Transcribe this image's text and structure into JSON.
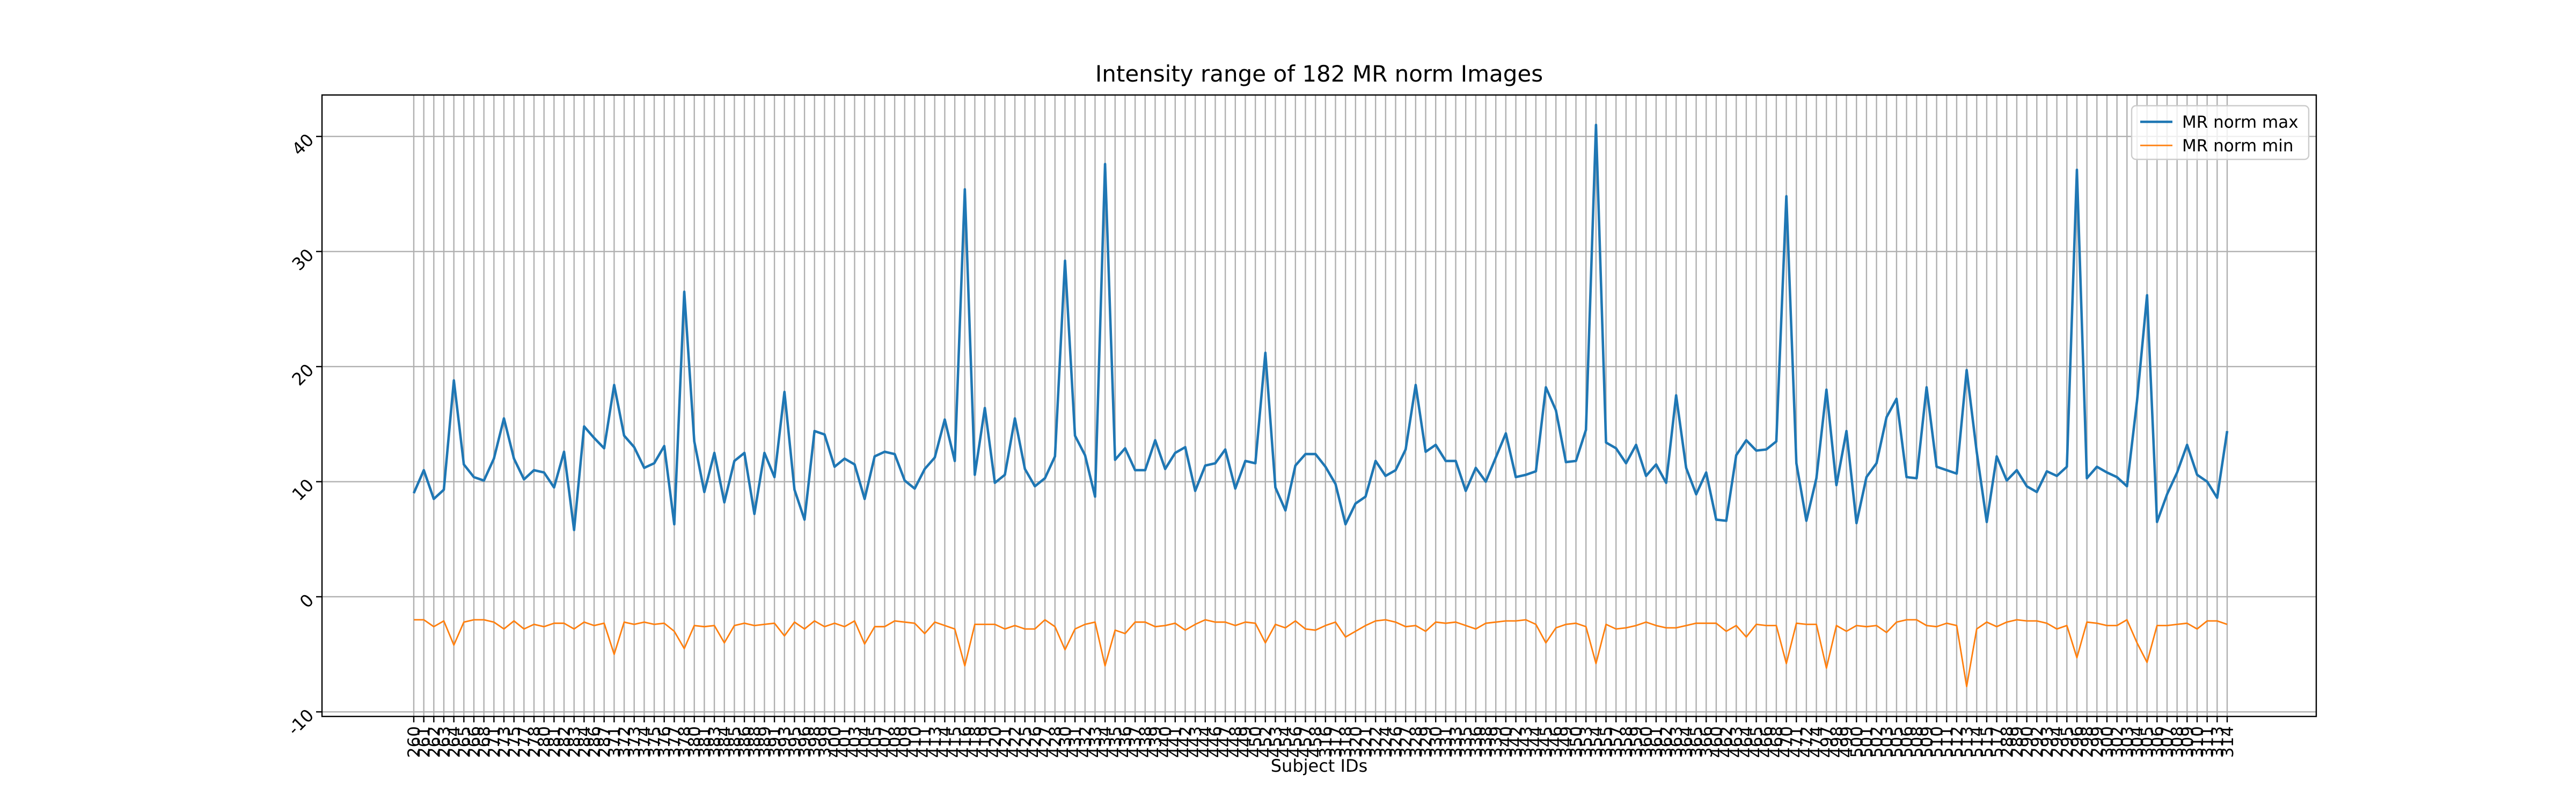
{
  "chart_data": {
    "type": "line",
    "title": "Intensity range of 182 MR norm Images",
    "x_label": "Subject IDs",
    "legend": "upper right",
    "grid": true,
    "ylim": [
      -10.4,
      43.6
    ],
    "yticks": [
      -10,
      0,
      10,
      20,
      30,
      40
    ],
    "categories": [
      "260",
      "261",
      "262",
      "263",
      "264",
      "265",
      "266",
      "268",
      "271",
      "273",
      "275",
      "277",
      "278",
      "280",
      "281",
      "282",
      "283",
      "284",
      "286",
      "287",
      "371",
      "372",
      "373",
      "374",
      "375",
      "376",
      "377",
      "378",
      "380",
      "381",
      "383",
      "384",
      "385",
      "386",
      "388",
      "389",
      "391",
      "393",
      "395",
      "396",
      "398",
      "399",
      "400",
      "401",
      "403",
      "404",
      "405",
      "407",
      "408",
      "409",
      "410",
      "411",
      "413",
      "414",
      "415",
      "416",
      "418",
      "419",
      "420",
      "421",
      "422",
      "425",
      "426",
      "427",
      "428",
      "430",
      "431",
      "432",
      "433",
      "434",
      "435",
      "436",
      "437",
      "438",
      "439",
      "440",
      "441",
      "442",
      "443",
      "444",
      "446",
      "447",
      "448",
      "449",
      "450",
      "452",
      "453",
      "454",
      "456",
      "457",
      "458",
      "316",
      "317",
      "318",
      "320",
      "321",
      "322",
      "324",
      "326",
      "327",
      "328",
      "329",
      "330",
      "331",
      "333",
      "335",
      "336",
      "338",
      "339",
      "340",
      "342",
      "343",
      "344",
      "345",
      "346",
      "349",
      "350",
      "353",
      "354",
      "355",
      "357",
      "358",
      "359",
      "360",
      "361",
      "362",
      "363",
      "364",
      "365",
      "366",
      "460",
      "462",
      "463",
      "464",
      "465",
      "466",
      "468",
      "470",
      "471",
      "472",
      "474",
      "497",
      "498",
      "499",
      "500",
      "501",
      "502",
      "503",
      "505",
      "506",
      "508",
      "509",
      "510",
      "511",
      "512",
      "513",
      "514",
      "515",
      "517",
      "288",
      "289",
      "290",
      "292",
      "293",
      "294",
      "295",
      "296",
      "298",
      "299",
      "300",
      "302",
      "303",
      "304",
      "305",
      "306",
      "307",
      "308",
      "309",
      "310",
      "311",
      "313",
      "314"
    ],
    "series": [
      {
        "name": "MR norm max",
        "color": "#1f77b4",
        "values": [
          9,
          11,
          8.5,
          9.3,
          18.8,
          11.5,
          10.4,
          10.1,
          12,
          15.5,
          12,
          10.2,
          11,
          10.8,
          9.5,
          12.6,
          5.8,
          14.8,
          13.8,
          12.9,
          18.4,
          14,
          13,
          11.2,
          11.6,
          13.1,
          6.3,
          26.5,
          13.5,
          9.1,
          12.5,
          8.2,
          11.8,
          12.5,
          7.2,
          12.5,
          10.4,
          17.8,
          9.3,
          6.7,
          14.4,
          14.1,
          11.3,
          12,
          11.5,
          8.5,
          12.2,
          12.6,
          12.4,
          10.1,
          9.4,
          11.1,
          12.1,
          15.4,
          11.8,
          35.4,
          10.6,
          16.4,
          9.9,
          10.6,
          15.5,
          11.1,
          9.6,
          10.3,
          12.2,
          29.2,
          14,
          12.3,
          8.7,
          37.6,
          11.9,
          12.9,
          11,
          11,
          13.6,
          11.1,
          12.5,
          13,
          9.2,
          11.4,
          11.6,
          12.8,
          9.4,
          11.8,
          11.6,
          21.2,
          9.5,
          7.5,
          11.4,
          12.4,
          12.4,
          11.3,
          9.8,
          6.3,
          8.1,
          8.7,
          11.8,
          10.5,
          11,
          12.8,
          18.4,
          12.6,
          13.2,
          11.8,
          11.8,
          9.2,
          11.2,
          10,
          12.1,
          14.2,
          10.4,
          10.6,
          10.9,
          18.2,
          16.2,
          11.7,
          11.8,
          14.5,
          41,
          13.4,
          12.9,
          11.6,
          13.2,
          10.5,
          11.5,
          9.9,
          17.5,
          11.2,
          8.9,
          10.8,
          6.7,
          6.6,
          12.3,
          13.6,
          12.7,
          12.8,
          13.5,
          34.8,
          11.6,
          6.6,
          10.3,
          18,
          9.7,
          14.4,
          6.4,
          10.4,
          11.6,
          15.6,
          17.2,
          10.4,
          10.3,
          18.2,
          11.3,
          11,
          10.7,
          19.7,
          12.6,
          6.5,
          12.2,
          10.1,
          11,
          9.6,
          9.1,
          10.9,
          10.5,
          11.3,
          37.1,
          10.3,
          11.3,
          10.8,
          10.4,
          9.6,
          17,
          26.2,
          6.5,
          8.9,
          10.8,
          13.2,
          10.6,
          10,
          8.6,
          14.4
        ]
      },
      {
        "name": "MR norm min",
        "color": "#ff7f0e",
        "values": [
          -2,
          -2,
          -2.6,
          -2.1,
          -4.2,
          -2.2,
          -2,
          -2,
          -2.2,
          -2.8,
          -2.1,
          -2.8,
          -2.4,
          -2.6,
          -2.3,
          -2.3,
          -2.8,
          -2.2,
          -2.5,
          -2.3,
          -5,
          -2.2,
          -2.4,
          -2.2,
          -2.4,
          -2.3,
          -3,
          -4.5,
          -2.5,
          -2.6,
          -2.5,
          -4,
          -2.5,
          -2.3,
          -2.5,
          -2.4,
          -2.3,
          -3.4,
          -2.2,
          -2.8,
          -2.1,
          -2.6,
          -2.3,
          -2.6,
          -2.1,
          -4.1,
          -2.6,
          -2.6,
          -2.1,
          -2.2,
          -2.3,
          -3.2,
          -2.2,
          -2.5,
          -2.8,
          -6,
          -2.4,
          -2.4,
          -2.4,
          -2.8,
          -2.5,
          -2.8,
          -2.8,
          -2,
          -2.6,
          -4.6,
          -2.8,
          -2.4,
          -2.2,
          -6,
          -2.9,
          -3.2,
          -2.2,
          -2.2,
          -2.6,
          -2.5,
          -2.3,
          -2.9,
          -2.4,
          -2,
          -2.2,
          -2.2,
          -2.5,
          -2.2,
          -2.3,
          -4,
          -2.4,
          -2.7,
          -2.1,
          -2.8,
          -2.9,
          -2.5,
          -2.2,
          -3.5,
          -3,
          -2.5,
          -2.1,
          -2,
          -2.2,
          -2.6,
          -2.5,
          -3,
          -2.2,
          -2.3,
          -2.2,
          -2.5,
          -2.8,
          -2.3,
          -2.2,
          -2.1,
          -2.1,
          -2,
          -2.4,
          -4,
          -2.7,
          -2.4,
          -2.3,
          -2.6,
          -5.8,
          -2.4,
          -2.8,
          -2.7,
          -2.5,
          -2.2,
          -2.5,
          -2.7,
          -2.7,
          -2.5,
          -2.3,
          -2.3,
          -2.3,
          -3,
          -2.5,
          -3.5,
          -2.4,
          -2.5,
          -2.5,
          -5.8,
          -2.3,
          -2.4,
          -2.4,
          -6.2,
          -2.5,
          -3,
          -2.5,
          -2.6,
          -2.5,
          -3.1,
          -2.2,
          -2,
          -2,
          -2.5,
          -2.6,
          -2.3,
          -2.5,
          -7.8,
          -2.8,
          -2.2,
          -2.6,
          -2.2,
          -2,
          -2.1,
          -2.1,
          -2.3,
          -2.8,
          -2.5,
          -5.3,
          -2.2,
          -2.3,
          -2.5,
          -2.5,
          -2,
          -4,
          -5.7,
          -2.5,
          -2.5,
          -2.4,
          -2.3,
          -2.8,
          -2.1,
          -2.1,
          -2.4
        ]
      }
    ]
  }
}
